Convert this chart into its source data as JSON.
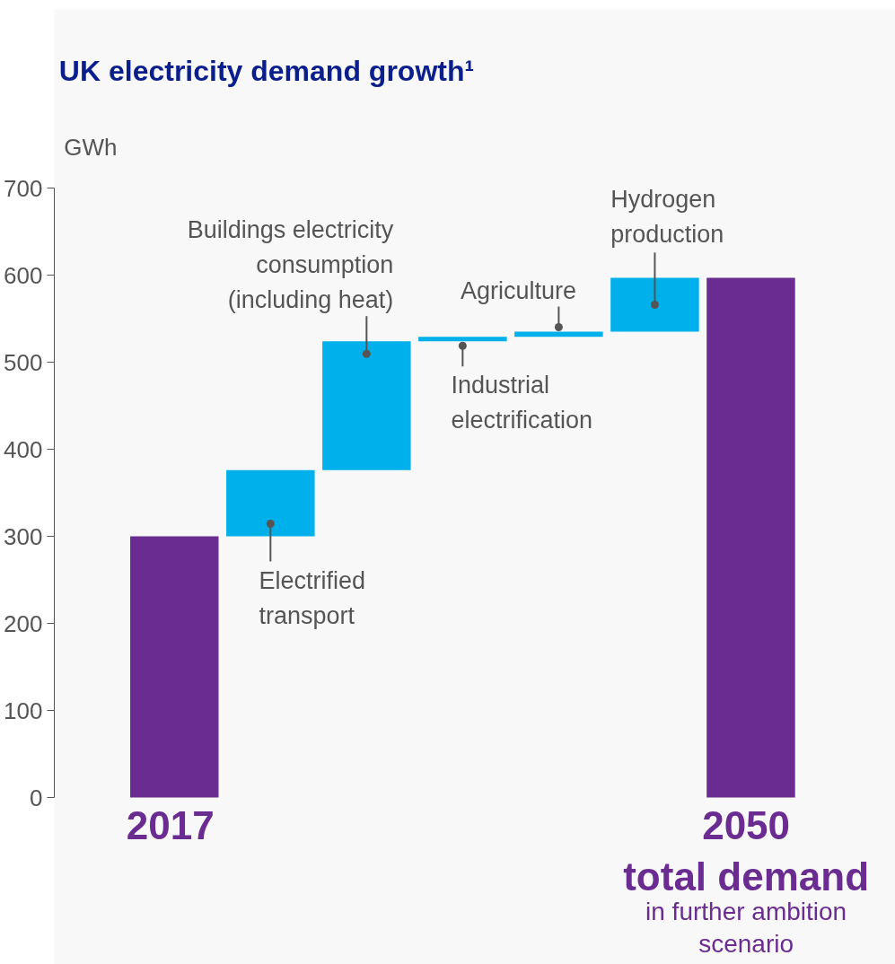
{
  "chart_data": {
    "type": "bar",
    "title": "UK electricity demand growth¹",
    "ylabel": "GWh",
    "categories": [
      "2017",
      null,
      null,
      null,
      null,
      null,
      "2050\ntotal demand\nin further ambition\nscenario"
    ],
    "annotations": [
      "Electrified\ntransport",
      "Buildings electricity\nconsumption\n(including heat)",
      "Industrial\nelectrification",
      "Agriculture",
      "Hydrogen\nproduction"
    ],
    "values": [
      300,
      76,
      148,
      5,
      6,
      62,
      597
    ],
    "base": [
      0,
      300,
      376,
      524,
      529,
      535,
      0
    ],
    "colors": [
      "#6a2c91",
      "#00b0ea",
      "#00b0ea",
      "#00b0ea",
      "#00b0ea",
      "#00b0ea",
      "#6a2c91"
    ],
    "ylim": [
      0,
      700
    ],
    "yticks": [
      0,
      100,
      200,
      300,
      400,
      500,
      600,
      700
    ],
    "grid": false
  }
}
